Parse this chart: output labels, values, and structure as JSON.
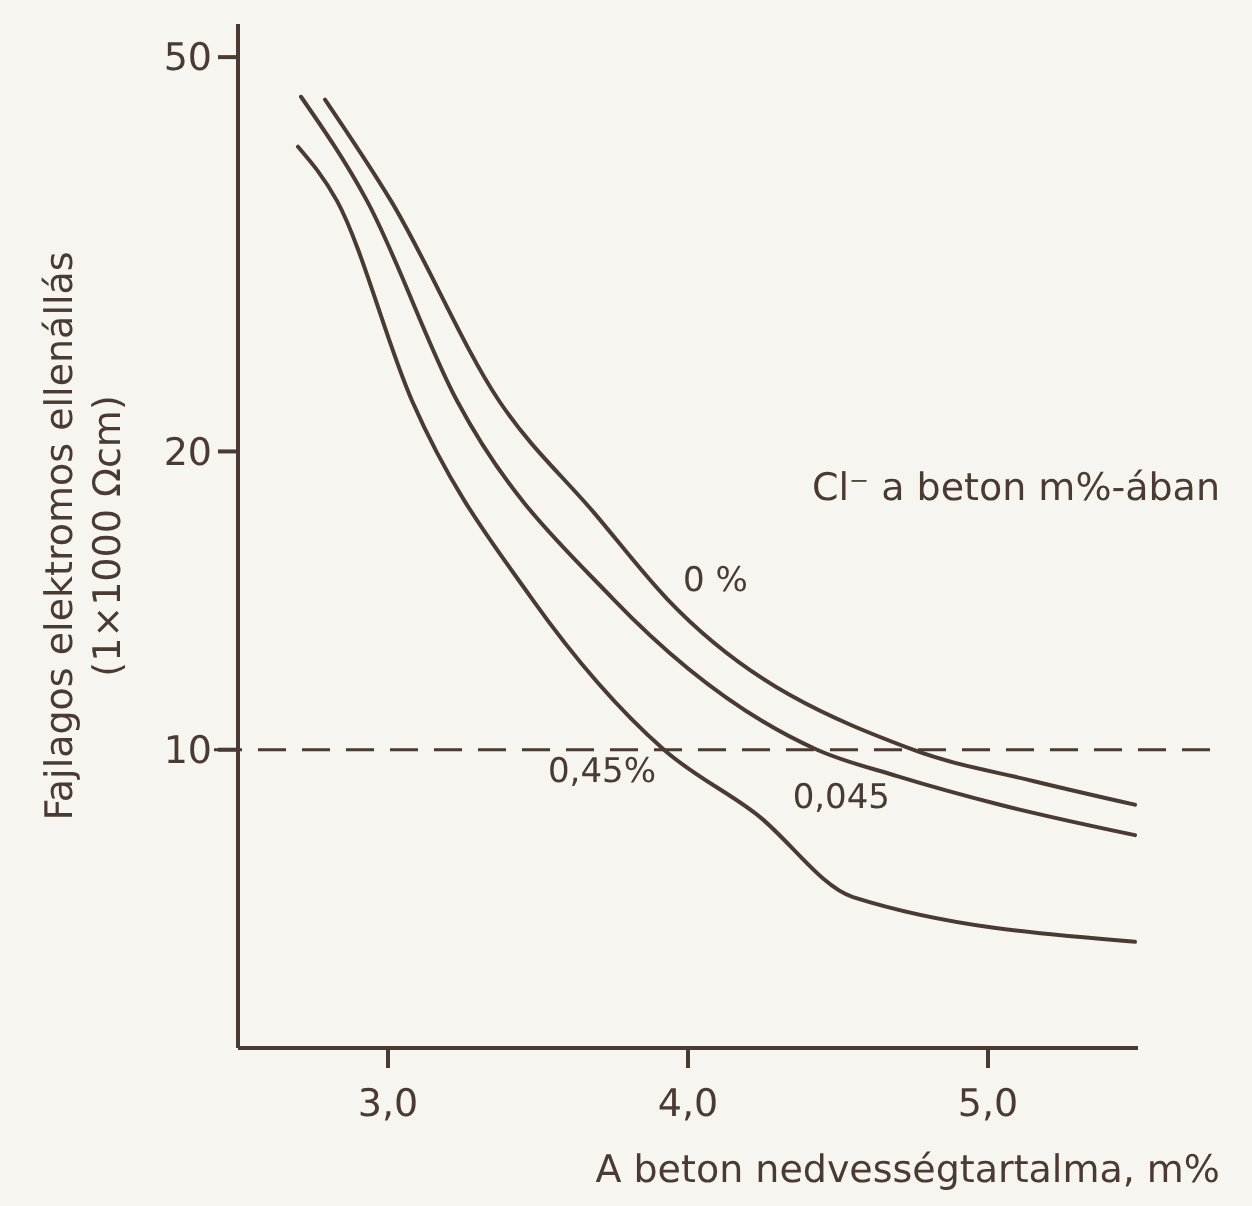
{
  "chart_data": {
    "type": "line",
    "xlabel": "A beton nedvességtartalma, m%",
    "ylabel": "Fajlagos elektromos ellenállás\n(1×1000 Ωcm)",
    "legend_title": "Cl⁻ a beton m%-ában",
    "log": "y",
    "xlim": [
      2.5,
      5.5
    ],
    "xticks": [
      {
        "value": 3,
        "label": "3,0"
      },
      {
        "value": 4,
        "label": "4,0"
      },
      {
        "value": 5,
        "label": "5,0"
      }
    ],
    "ylim": [
      5,
      54
    ],
    "yticks": [
      10,
      20,
      50
    ],
    "grid": false,
    "marker": "none",
    "line_style": "solid",
    "ref_lines": [
      {
        "axis": "y",
        "value": 10,
        "line_style": "dashed"
      }
    ],
    "series": [
      {
        "name": "0 %",
        "color": "#4a3a33",
        "x": [
          2.79,
          3.01,
          3.37,
          3.69,
          3.93,
          4.75,
          5.15,
          5.49
        ],
        "values": [
          45.3,
          35.8,
          22.5,
          17.3,
          14.2,
          10,
          9.3,
          8.8
        ]
      },
      {
        "name": "0,045",
        "color": "#4a3a33",
        "x": [
          2.71,
          2.93,
          3.23,
          3.75,
          4.43,
          4.7,
          5.04,
          5.49
        ],
        "values": [
          45.6,
          35.8,
          22.5,
          14.2,
          10,
          9.4,
          8.8,
          8.2
        ]
      },
      {
        "name": "0,45%",
        "color": "#4a3a33",
        "x": [
          2.7,
          2.83,
          3.08,
          3.48,
          3.92,
          4.23,
          4.55,
          5.49
        ],
        "values": [
          40.6,
          35.8,
          22.5,
          14.2,
          10,
          8.6,
          7.1,
          6.4
        ]
      }
    ]
  }
}
